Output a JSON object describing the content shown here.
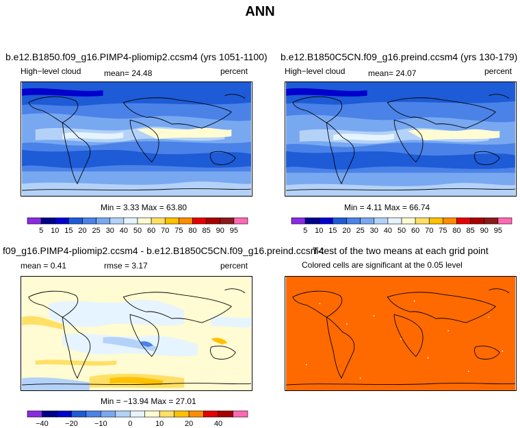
{
  "title": "ANN",
  "colors": {
    "full_scale": [
      "#8a2be2",
      "#00008b",
      "#0000cd",
      "#1e5bd6",
      "#4a82e8",
      "#78a8f0",
      "#b4d2f8",
      "#e6f4ff",
      "#fffbd2",
      "#ffe066",
      "#ffc000",
      "#ff8c00",
      "#e60000",
      "#a80000",
      "#8b1a1a",
      "#ff69b4"
    ],
    "significance": "#ff6a00",
    "coast": "#000000"
  },
  "panels": {
    "tl": {
      "title": "b.e12.B1850.f09_g16.PIMP4-pliomip2.ccsm4 (yrs 1051-1100)",
      "left": "High−level cloud",
      "center": "mean=  24.48",
      "right": "percent",
      "minmax": "Min =    3.33 Max =  63.80"
    },
    "tr": {
      "title": "b.e12.B1850C5CN.f09_g16.preind.ccsm4 (yrs 130-179)",
      "left": "High−level cloud",
      "center": "mean=  24.07",
      "right": "percent",
      "minmax": "Min =    4.11 Max =  66.74"
    },
    "bl": {
      "title": "f09_g16.PIMP4-pliomip2.ccsm4 - b.e12.B1850C5CN.f09_g16.preind.ccsm4",
      "left": "mean =     0.41",
      "center": "rmse =     3.17",
      "right": "percent",
      "minmax": "Min = −13.94 Max =  27.01"
    },
    "br": {
      "title": "T-test of the two means at each grid point",
      "subtitle": "Colored cells are significant at the 0.05 level"
    }
  },
  "colorbars": {
    "top_labels": [
      "5",
      "10",
      "15",
      "20",
      "25",
      "30",
      "40",
      "50",
      "60",
      "70",
      "75",
      "80",
      "85",
      "90",
      "95"
    ],
    "diff_labels": [
      "−40",
      "−20",
      "−10",
      "0",
      "10",
      "20",
      "40"
    ],
    "diff_colors": [
      "#8a2be2",
      "#00008b",
      "#0000cd",
      "#1e5bd6",
      "#4a82e8",
      "#78a8f0",
      "#b4d2f8",
      "#e6f4ff",
      "#fffbd2",
      "#ffe066",
      "#ffc000",
      "#ff8c00",
      "#e60000",
      "#a80000",
      "#ff69b4"
    ]
  },
  "chart_data": [
    {
      "type": "heatmap",
      "panel": "tl",
      "title": "b.e12.B1850.f09_g16.PIMP4-pliomip2.ccsm4 (yrs 1051-1100)",
      "variable": "High−level cloud",
      "units": "percent",
      "mean": 24.48,
      "min": 3.33,
      "max": 63.8
    },
    {
      "type": "heatmap",
      "panel": "tr",
      "title": "b.e12.B1850C5CN.f09_g16.preind.ccsm4 (yrs 130-179)",
      "variable": "High−level cloud",
      "units": "percent",
      "mean": 24.07,
      "min": 4.11,
      "max": 66.74
    },
    {
      "type": "heatmap",
      "panel": "bl",
      "title": "f09_g16.PIMP4-pliomip2.ccsm4 - b.e12.B1850C5CN.f09_g16.preind.ccsm4",
      "units": "percent",
      "mean": 0.41,
      "rmse": 3.17,
      "min": -13.94,
      "max": 27.01
    },
    {
      "type": "heatmap",
      "panel": "br",
      "title": "T-test of the two means at each grid point",
      "subtitle": "Colored cells are significant at the 0.05 level"
    }
  ]
}
